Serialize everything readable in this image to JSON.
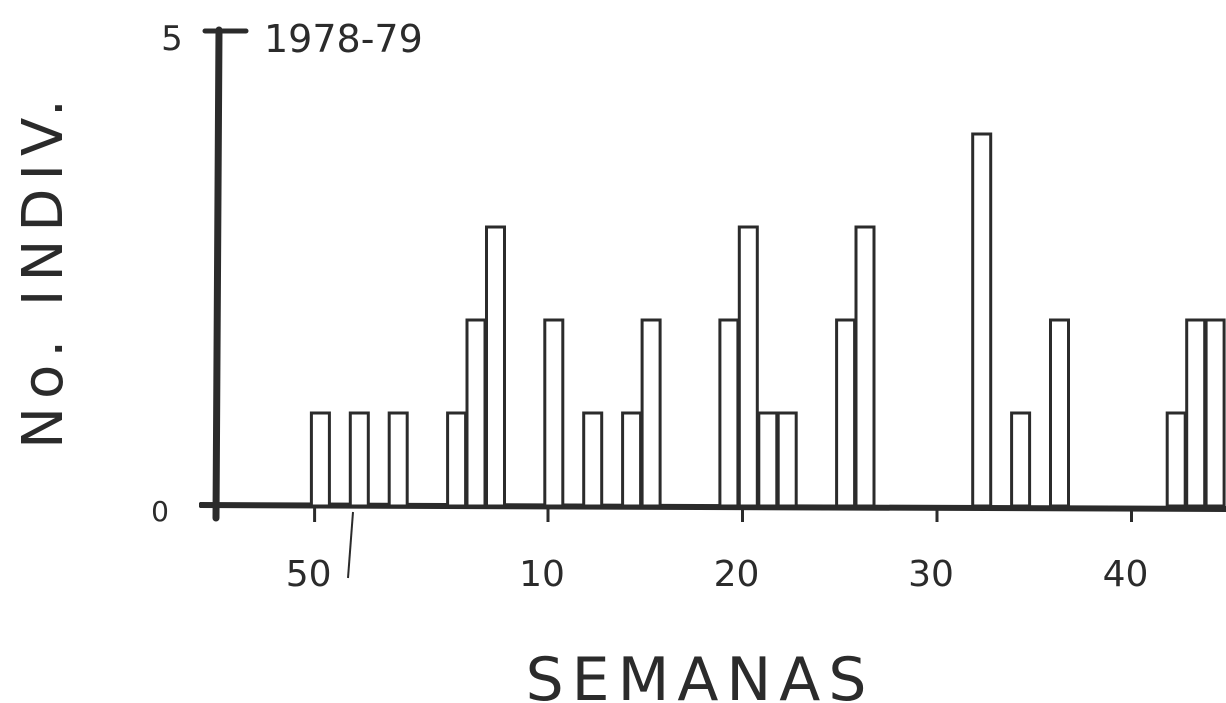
{
  "chart_data": {
    "type": "bar",
    "period_label": "1978-79",
    "xlabel": "SEMANAS",
    "ylabel": "No. INDIV.",
    "ylim": [
      0,
      5
    ],
    "y_tick_labels": [
      "0",
      "5"
    ],
    "x_tick_labels": [
      "50",
      "10",
      "20",
      "30",
      "40"
    ],
    "grid": false,
    "legend": "none",
    "bars": [
      {
        "week": 50.3,
        "value": 1
      },
      {
        "week": 52.3,
        "value": 1
      },
      {
        "week": 2.3,
        "value": 1
      },
      {
        "week": 5.3,
        "value": 1
      },
      {
        "week": 6.3,
        "value": 2
      },
      {
        "week": 7.3,
        "value": 3
      },
      {
        "week": 10.3,
        "value": 2
      },
      {
        "week": 12.3,
        "value": 1
      },
      {
        "week": 14.3,
        "value": 1
      },
      {
        "week": 15.3,
        "value": 2
      },
      {
        "week": 19.3,
        "value": 2
      },
      {
        "week": 20.3,
        "value": 3
      },
      {
        "week": 21.3,
        "value": 1
      },
      {
        "week": 22.3,
        "value": 1
      },
      {
        "week": 25.3,
        "value": 2
      },
      {
        "week": 26.3,
        "value": 3
      },
      {
        "week": 32.3,
        "value": 4
      },
      {
        "week": 34.3,
        "value": 1
      },
      {
        "week": 36.3,
        "value": 2
      },
      {
        "week": 42.3,
        "value": 1
      },
      {
        "week": 43.3,
        "value": 2
      },
      {
        "week": 44.3,
        "value": 2
      }
    ],
    "colors": {
      "ink": "#2b2b2b",
      "bar_fill": "#ffffff",
      "background": "#ffffff"
    }
  }
}
